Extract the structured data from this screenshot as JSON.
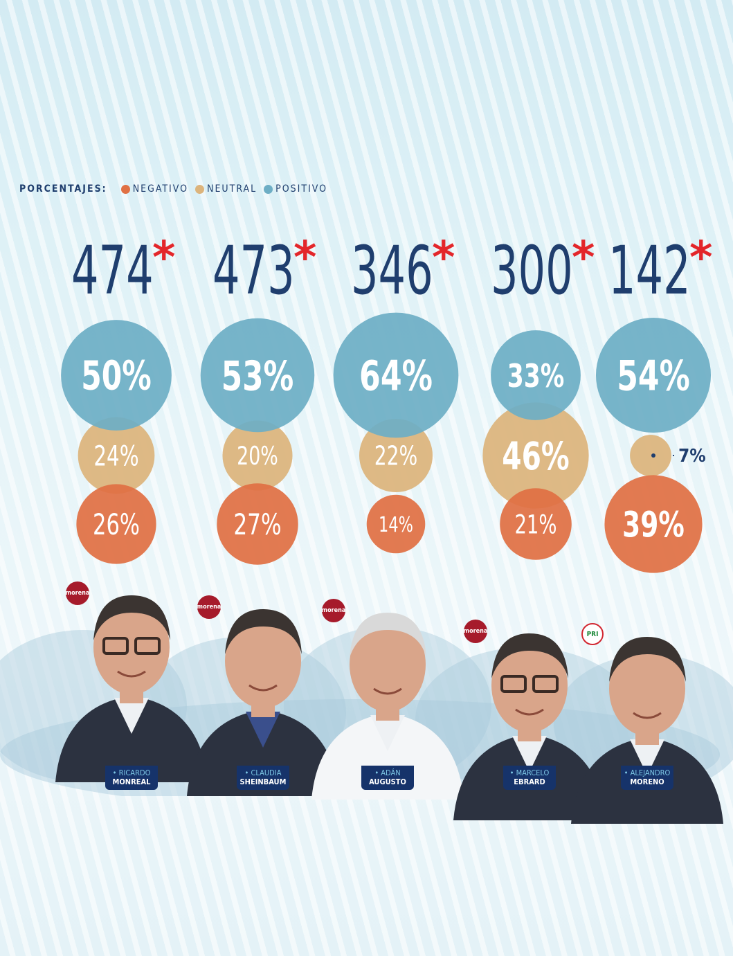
{
  "legend": {
    "title": "PORCENTAJES:",
    "items": [
      {
        "label": "NEGATIVO",
        "color": "#e07044"
      },
      {
        "label": "NEUTRAL",
        "color": "#dcb47c"
      },
      {
        "label": "POSITIVO",
        "color": "#6eaec5"
      }
    ]
  },
  "chart_data": {
    "type": "bubble",
    "unit": "%",
    "categories": [
      "RICARDO MONREAL",
      "CLAUDIA SHEINBAUM",
      "ADÁN AUGUSTO",
      "MARCELO EBRARD",
      "ALEJANDRO MORENO"
    ],
    "totals": [
      474,
      473,
      346,
      300,
      142
    ],
    "total_marker": "*",
    "series": [
      {
        "name": "POSITIVO",
        "color": "#6eaec5",
        "values": [
          50,
          53,
          64,
          33,
          54
        ]
      },
      {
        "name": "NEUTRAL",
        "color": "#dcb47c",
        "values": [
          24,
          20,
          22,
          46,
          7
        ]
      },
      {
        "name": "NEGATIVO",
        "color": "#e07044",
        "values": [
          26,
          27,
          14,
          21,
          39
        ]
      }
    ]
  },
  "candidates": [
    {
      "first": "• RICARDO",
      "last": "MONREAL",
      "party": "morena",
      "party_color": "#a61b2b"
    },
    {
      "first": "• CLAUDIA",
      "last": "SHEINBAUM",
      "party": "morena",
      "party_color": "#a61b2b"
    },
    {
      "first": "• ADÁN",
      "last": "AUGUSTO",
      "party": "morena",
      "party_color": "#a61b2b"
    },
    {
      "first": "• MARCELO",
      "last": "EBRARD",
      "party": "morena",
      "party_color": "#a61b2b"
    },
    {
      "first": "• ALEJANDRO",
      "last": "MORENO",
      "party": "PRI",
      "party_color": "#1d8a3a"
    }
  ],
  "colors": {
    "title_blue": "#1f3e6e",
    "asterisk_red": "#e3262a",
    "tag_bg": "#16336a",
    "skin": "#d9a58a",
    "hair": "#3b3431",
    "suit": "#2c3240"
  }
}
